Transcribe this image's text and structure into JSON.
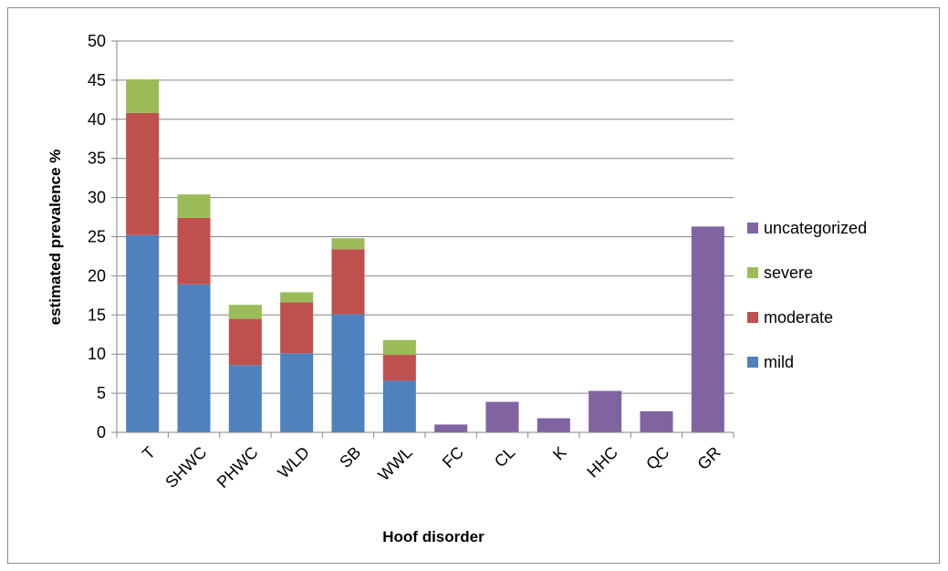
{
  "chart_data": {
    "type": "bar",
    "stacked": true,
    "title": "",
    "xlabel": "Hoof disorder",
    "ylabel": "estimated prevalence %",
    "ylim": [
      0,
      50
    ],
    "yticks": [
      0,
      5,
      10,
      15,
      20,
      25,
      30,
      35,
      40,
      45,
      50
    ],
    "grid": true,
    "legend_position": "right",
    "categories": [
      "T",
      "SHWC",
      "PHWC",
      "WLD",
      "SB",
      "WWL",
      "FC",
      "CL",
      "K",
      "HHC",
      "QC",
      "GR"
    ],
    "series": [
      {
        "name": "mild",
        "color": "#4f81bd",
        "values": [
          25.2,
          18.9,
          8.6,
          10.1,
          15.1,
          6.6,
          0,
          0,
          0,
          0,
          0,
          0
        ]
      },
      {
        "name": "moderate",
        "color": "#c0504d",
        "values": [
          15.6,
          8.5,
          5.9,
          6.5,
          8.3,
          3.3,
          0,
          0,
          0,
          0,
          0,
          0
        ]
      },
      {
        "name": "severe",
        "color": "#9bbb59",
        "values": [
          4.3,
          3.0,
          1.8,
          1.3,
          1.4,
          1.9,
          0,
          0,
          0,
          0,
          0,
          0
        ]
      },
      {
        "name": "uncategorized",
        "color": "#8064a2",
        "values": [
          0,
          0,
          0,
          0,
          0,
          0,
          1.0,
          3.9,
          1.8,
          5.3,
          2.7,
          26.3
        ]
      }
    ],
    "legend_order": [
      "uncategorized",
      "severe",
      "moderate",
      "mild"
    ]
  }
}
